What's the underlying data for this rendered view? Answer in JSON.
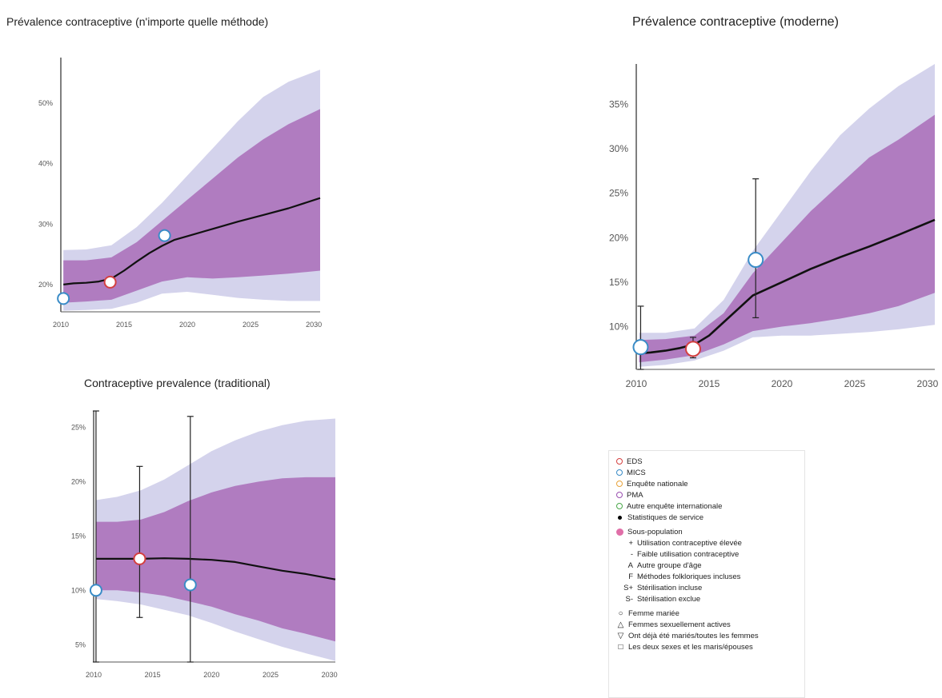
{
  "colors": {
    "outer_band": "#d4d3ec",
    "inner_band": "#b07cc0",
    "median_line": "#111111",
    "axis": "#555555",
    "tick_label": "#555555",
    "sous_population": "#e06fa8"
  },
  "chart_data": [
    {
      "id": "chart1",
      "type": "area",
      "title": "Prévalence contraceptive (n'importe quelle méthode)",
      "x_ticks": [
        2010,
        2015,
        2020,
        2025,
        2030
      ],
      "y_ticks": [
        20,
        30,
        40,
        50
      ],
      "y_tick_labels": [
        "20%",
        "30%",
        "40%",
        "50%"
      ],
      "xlim": [
        2010,
        2030.5
      ],
      "ylim": [
        15.5,
        57.5
      ],
      "grid": false,
      "median": {
        "x": [
          2010.2,
          2011,
          2012,
          2013,
          2014,
          2015,
          2016,
          2017,
          2018,
          2019,
          2020,
          2022,
          2024,
          2026,
          2028,
          2030.5
        ],
        "y": [
          20.0,
          20.2,
          20.3,
          20.5,
          21.0,
          22.3,
          23.8,
          25.2,
          26.4,
          27.4,
          28.0,
          29.2,
          30.4,
          31.5,
          32.6,
          34.3
        ]
      },
      "inner_band": {
        "x": [
          2010.2,
          2012,
          2014,
          2016,
          2018,
          2020,
          2022,
          2024,
          2026,
          2028,
          2030.5
        ],
        "lower": [
          17.0,
          17.2,
          17.5,
          19.0,
          20.5,
          21.2,
          21.0,
          21.2,
          21.5,
          21.8,
          22.3
        ],
        "upper": [
          24.0,
          24.0,
          24.5,
          27.0,
          30.5,
          34.0,
          37.5,
          41.0,
          44.0,
          46.5,
          49.0
        ]
      },
      "outer_band": {
        "x": [
          2010.2,
          2012,
          2014,
          2016,
          2018,
          2020,
          2022,
          2024,
          2026,
          2028,
          2030.5
        ],
        "lower": [
          15.7,
          15.8,
          16.0,
          17.0,
          18.5,
          18.8,
          18.3,
          17.8,
          17.5,
          17.3,
          17.3
        ],
        "upper": [
          25.7,
          25.8,
          26.5,
          29.5,
          33.5,
          38.0,
          42.5,
          47.0,
          51.0,
          53.5,
          55.5
        ]
      },
      "points": [
        {
          "source": "MICS",
          "x": 2010.2,
          "y": 17.7,
          "color": "#3a8cc7"
        },
        {
          "source": "EDS",
          "x": 2013.9,
          "y": 20.4,
          "color": "#d44040"
        },
        {
          "source": "MICS",
          "x": 2018.2,
          "y": 28.1,
          "color": "#3a8cc7"
        }
      ],
      "error_bars": []
    },
    {
      "id": "chart2",
      "type": "area",
      "title": "Prévalence contraceptive (moderne)",
      "x_ticks": [
        2010,
        2015,
        2020,
        2025,
        2030
      ],
      "y_ticks": [
        10,
        15,
        20,
        25,
        30,
        35
      ],
      "y_tick_labels": [
        "10%",
        "15%",
        "20%",
        "25%",
        "30%",
        "35%"
      ],
      "xlim": [
        2010,
        2030.5
      ],
      "ylim": [
        5.2,
        39.5
      ],
      "grid": false,
      "median": {
        "x": [
          2010.2,
          2011,
          2012,
          2013,
          2014,
          2015,
          2016,
          2017,
          2018,
          2020,
          2022,
          2024,
          2026,
          2028,
          2030.5
        ],
        "y": [
          7.0,
          7.1,
          7.3,
          7.6,
          8.0,
          9.0,
          10.5,
          12.0,
          13.5,
          15.0,
          16.5,
          17.8,
          19.0,
          20.3,
          22.0
        ]
      },
      "inner_band": {
        "x": [
          2010.2,
          2012,
          2014,
          2016,
          2018,
          2020,
          2022,
          2024,
          2026,
          2028,
          2030.5
        ],
        "lower": [
          6.0,
          6.3,
          6.8,
          8.0,
          9.5,
          10.0,
          10.4,
          10.9,
          11.5,
          12.3,
          13.8
        ],
        "upper": [
          8.5,
          8.6,
          9.0,
          11.5,
          16.0,
          19.5,
          23.0,
          26.0,
          29.0,
          31.0,
          33.8
        ]
      },
      "outer_band": {
        "x": [
          2010.2,
          2012,
          2014,
          2016,
          2018,
          2020,
          2022,
          2024,
          2026,
          2028,
          2030.5
        ],
        "lower": [
          5.5,
          5.7,
          6.2,
          7.3,
          8.8,
          9.0,
          9.0,
          9.2,
          9.4,
          9.7,
          10.2
        ],
        "upper": [
          9.3,
          9.3,
          9.8,
          13.0,
          18.5,
          23.0,
          27.5,
          31.5,
          34.5,
          37.0,
          39.5
        ]
      },
      "points": [
        {
          "source": "MICS",
          "x": 2010.3,
          "y": 7.7,
          "color": "#3a8cc7"
        },
        {
          "source": "EDS",
          "x": 2013.9,
          "y": 7.5,
          "color": "#d44040"
        },
        {
          "source": "MICS",
          "x": 2018.2,
          "y": 17.5,
          "color": "#3a8cc7"
        }
      ],
      "error_bars": [
        {
          "x": 2010.3,
          "low": 5.2,
          "high": 12.3
        },
        {
          "x": 2013.9,
          "low": 6.5,
          "high": 8.8
        },
        {
          "x": 2018.2,
          "low": 11.0,
          "high": 26.6
        }
      ]
    },
    {
      "id": "chart3",
      "type": "area",
      "title": "Contraceptive prevalence (traditional)",
      "x_ticks": [
        2010,
        2015,
        2020,
        2025,
        2030
      ],
      "y_ticks": [
        5,
        10,
        15,
        20,
        25
      ],
      "y_tick_labels": [
        "5%",
        "10%",
        "15%",
        "20%",
        "25%"
      ],
      "xlim": [
        2010,
        2030.5
      ],
      "ylim": [
        3.4,
        26.5
      ],
      "grid": false,
      "median": {
        "x": [
          2010.2,
          2012,
          2014,
          2016,
          2018,
          2020,
          2022,
          2024,
          2026,
          2028,
          2030.5
        ],
        "y": [
          12.9,
          12.9,
          12.9,
          12.95,
          12.9,
          12.8,
          12.6,
          12.2,
          11.8,
          11.5,
          11.0
        ]
      },
      "inner_band": {
        "x": [
          2010.2,
          2012,
          2014,
          2016,
          2018,
          2020,
          2022,
          2024,
          2026,
          2028,
          2030.5
        ],
        "lower": [
          10.0,
          10.0,
          9.8,
          9.5,
          9.0,
          8.5,
          7.8,
          7.2,
          6.5,
          6.0,
          5.3
        ],
        "upper": [
          16.3,
          16.3,
          16.5,
          17.2,
          18.2,
          19.0,
          19.6,
          20.0,
          20.3,
          20.4,
          20.4
        ]
      },
      "outer_band": {
        "x": [
          2010.2,
          2012,
          2014,
          2016,
          2018,
          2020,
          2022,
          2024,
          2026,
          2028,
          2030.5
        ],
        "lower": [
          9.2,
          9.0,
          8.7,
          8.2,
          7.7,
          7.0,
          6.2,
          5.5,
          4.8,
          4.2,
          3.5
        ],
        "upper": [
          18.3,
          18.6,
          19.2,
          20.2,
          21.5,
          22.8,
          23.8,
          24.6,
          25.2,
          25.6,
          25.8
        ]
      },
      "points": [
        {
          "source": "MICS",
          "x": 2010.2,
          "y": 10.0,
          "color": "#3a8cc7"
        },
        {
          "source": "EDS",
          "x": 2013.9,
          "y": 12.9,
          "color": "#d44040"
        },
        {
          "source": "MICS",
          "x": 2018.2,
          "y": 10.5,
          "color": "#3a8cc7"
        }
      ],
      "error_bars": [
        {
          "x": 2010.2,
          "low": 3.4,
          "high": 26.5
        },
        {
          "x": 2013.9,
          "low": 7.5,
          "high": 21.4
        },
        {
          "x": 2018.2,
          "low": 3.4,
          "high": 26.0
        }
      ]
    }
  ],
  "legend": {
    "sources": [
      {
        "label": "EDS",
        "color": "#d44040",
        "symbol": "circle"
      },
      {
        "label": "MICS",
        "color": "#3a8cc7",
        "symbol": "circle"
      },
      {
        "label": "Enquête nationale",
        "color": "#e8a33a",
        "symbol": "circle"
      },
      {
        "label": "PMA",
        "color": "#9a4fb0",
        "symbol": "circle"
      },
      {
        "label": "Autre enquête internationale",
        "color": "#4aa84a",
        "symbol": "circle"
      },
      {
        "label": "Statistiques de service",
        "color": "#000000",
        "symbol": "dot"
      }
    ],
    "subpopulation": {
      "label": "Sous-population",
      "items": [
        {
          "code": "+",
          "label": "Utilisation contraceptive élevée"
        },
        {
          "code": "-",
          "label": "Faible utilisation contraceptive"
        },
        {
          "code": "A",
          "label": "Autre groupe d'âge"
        },
        {
          "code": "F",
          "label": "Méthodes folkloriques incluses"
        },
        {
          "code": "S+",
          "label": "Stérilisation incluse"
        },
        {
          "code": "S-",
          "label": "Stérilisation exclue"
        }
      ]
    },
    "groups": [
      {
        "symbol": "○",
        "label": "Femme mariée"
      },
      {
        "symbol": "△",
        "label": "Femmes sexuellement actives"
      },
      {
        "symbol": "▽",
        "label": "Ont déjà été mariés/toutes les femmes"
      },
      {
        "symbol": "□",
        "label": "Les deux sexes et les maris/épouses"
      }
    ]
  }
}
